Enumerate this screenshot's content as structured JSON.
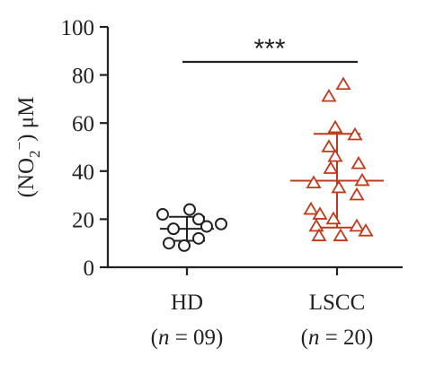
{
  "chart_data": {
    "type": "scatter",
    "ylabel_parts": [
      "(NO",
      "2",
      "−",
      ") μM"
    ],
    "ylim": [
      0,
      100
    ],
    "yticks": [
      "0",
      "20",
      "40",
      "60",
      "80",
      "100"
    ],
    "significance": "***",
    "groups": [
      {
        "label": "HD",
        "n_label": [
          "(",
          "n",
          " = 09)"
        ],
        "marker": "circle",
        "color": "#222222",
        "mean": 16,
        "sd_upper": 21,
        "sd_lower": 11,
        "values": [
          22,
          24,
          16,
          20,
          18,
          17,
          12,
          9,
          10
        ]
      },
      {
        "label": "LSCC",
        "n_label": [
          "(",
          "n",
          " = 20)"
        ],
        "marker": "triangle",
        "color": "#c0391b",
        "mean": 36,
        "sd_upper": 55.5,
        "sd_lower": 16.5,
        "values": [
          76,
          71,
          58,
          55,
          50,
          46,
          43,
          41,
          36,
          35,
          33,
          30,
          24,
          22,
          20,
          17,
          17,
          15,
          13,
          13
        ]
      }
    ]
  }
}
